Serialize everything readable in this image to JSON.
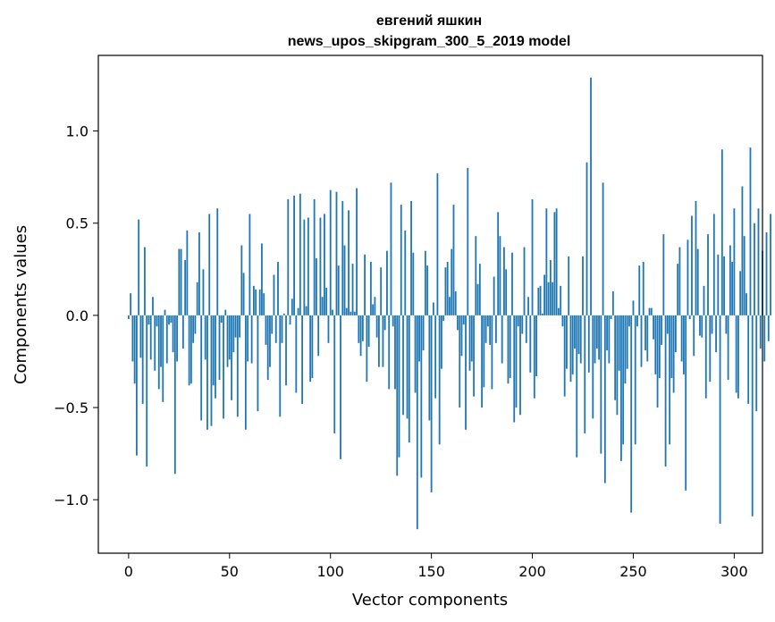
{
  "chart_data": {
    "type": "bar",
    "title_line1": "евгений яшкин",
    "title_line2": "news_upos_skipgram_300_5_2019 model",
    "xlabel": "Vector components",
    "ylabel": "Components values",
    "xlim": [
      -15,
      314
    ],
    "ylim": [
      -1.29,
      1.41
    ],
    "x_ticks": [
      {
        "value": 0,
        "label": "0"
      },
      {
        "value": 50,
        "label": "50"
      },
      {
        "value": 100,
        "label": "100"
      },
      {
        "value": 150,
        "label": "150"
      },
      {
        "value": 200,
        "label": "200"
      },
      {
        "value": 250,
        "label": "250"
      },
      {
        "value": 300,
        "label": "300"
      }
    ],
    "y_ticks": [
      {
        "value": -1.0,
        "label": "−1.0"
      },
      {
        "value": -0.5,
        "label": "−0.5"
      },
      {
        "value": 0.0,
        "label": "0.0"
      },
      {
        "value": 0.5,
        "label": "0.5"
      },
      {
        "value": 1.0,
        "label": "1.0"
      }
    ],
    "grid": false,
    "bar_color": "#1f77b4",
    "values": [
      -0.02,
      0.12,
      -0.25,
      -0.37,
      -0.76,
      0.52,
      -0.23,
      -0.48,
      0.37,
      -0.82,
      -0.05,
      -0.24,
      0.1,
      -0.3,
      -0.06,
      -0.4,
      -0.28,
      -0.47,
      0.03,
      -0.26,
      -0.05,
      -0.04,
      -0.2,
      -0.86,
      -0.25,
      0.36,
      0.36,
      -0.18,
      0.3,
      0.46,
      -0.38,
      -0.37,
      -0.15,
      -0.1,
      0.18,
      0.45,
      -0.57,
      0.25,
      -0.24,
      -0.62,
      0.55,
      -0.6,
      -0.38,
      -0.45,
      0.58,
      -0.35,
      -0.04,
      -0.56,
      0.03,
      -0.28,
      -0.24,
      -0.46,
      -0.2,
      -0.12,
      -0.55,
      -0.12,
      0.38,
      0.23,
      -0.62,
      -0.25,
      0.55,
      -0.26,
      0.16,
      0.14,
      -0.52,
      0.14,
      0.39,
      0.12,
      -0.16,
      -0.35,
      -0.28,
      -0.1,
      0.22,
      -0.15,
      0.29,
      -0.55,
      -0.15,
      0.01,
      -0.38,
      0.63,
      -0.05,
      0.09,
      0.65,
      -0.42,
      0.04,
      0.66,
      -0.48,
      0.52,
      0.05,
      0.53,
      -0.36,
      -0.34,
      0.63,
      0.31,
      -0.22,
      0.53,
      0.1,
      0.55,
      0.15,
      -0.15,
      0.68,
      0.03,
      -0.64,
      0.67,
      0.27,
      -0.78,
      0.62,
      0.38,
      0.04,
      0.57,
      0.02,
      0.28,
      0.02,
      0.69,
      -0.15,
      -0.22,
      -0.14,
      0.33,
      -0.36,
      -0.17,
      0.29,
      0.06,
      0.1,
      -0.12,
      -0.28,
      0.26,
      -0.28,
      -0.08,
      0.35,
      -0.4,
      0.72,
      -0.06,
      -0.4,
      -0.87,
      -0.77,
      0.6,
      -0.54,
      0.46,
      -0.56,
      -0.69,
      0.62,
      0.34,
      -0.42,
      -1.16,
      -0.25,
      -0.88,
      -0.19,
      0.35,
      0.27,
      -0.57,
      -0.96,
      0.07,
      -0.45,
      0.77,
      -0.7,
      -0.29,
      -0.03,
      0.26,
      0.29,
      0.1,
      0.36,
      0.6,
      0.13,
      -0.08,
      -0.5,
      -0.22,
      -0.05,
      -0.62,
      0.8,
      -0.3,
      -0.25,
      -0.44,
      0.43,
      0.17,
      0.28,
      -0.5,
      -0.39,
      -0.15,
      -0.06,
      -0.16,
      -0.4,
      0.21,
      -0.15,
      0.56,
      0.43,
      -0.26,
      0.37,
      0.25,
      -0.37,
      -0.34,
      0.34,
      -0.58,
      -0.5,
      -0.06,
      -0.54,
      -0.1,
      0.37,
      -0.15,
      0.1,
      -0.31,
      0.63,
      -0.45,
      -0.33,
      0.15,
      0.16,
      0.01,
      0.22,
      0.58,
      0.18,
      0.3,
      0.18,
      0.56,
      0.58,
      0.04,
      0.16,
      -0.06,
      -0.44,
      -0.29,
      0.32,
      -0.36,
      -0.32,
      -0.18,
      -0.77,
      -0.21,
      -0.26,
      0.32,
      -0.64,
      0.83,
      -0.31,
      1.29,
      -0.56,
      -0.26,
      -0.18,
      -0.24,
      -0.75,
      0.72,
      -0.91,
      -0.19,
      -0.26,
      -0.02,
      0.13,
      -0.46,
      -0.54,
      -0.3,
      -0.79,
      -0.7,
      -0.37,
      -0.29,
      -0.06,
      -1.07,
      0.08,
      -0.7,
      -0.06,
      0.27,
      -0.28,
      0.29,
      -0.19,
      -0.25,
      0.04,
      0.04,
      -0.13,
      -0.32,
      -0.5,
      -0.34,
      -0.16,
      0.44,
      -0.82,
      -0.1,
      -0.7,
      -0.34,
      -0.42,
      -0.2,
      0.28,
      0.37,
      -0.25,
      -0.32,
      -0.95,
      0.41,
      -0.02,
      0.54,
      -0.22,
      0.62,
      0.36,
      -0.11,
      -0.12,
      0.16,
      -0.45,
      0.44,
      -0.36,
      -0.1,
      0.55,
      -0.2,
      0.33,
      -1.13,
      0.9,
      0.32,
      -0.1,
      -0.35,
      0.38,
      0.29,
      0.58,
      -0.42,
      -0.45,
      0.24,
      0.7,
      0.43,
      0.12,
      -0.48,
      0.91,
      -1.09,
      0.5,
      -0.52,
      0.58,
      -0.18,
      0.35,
      -0.25,
      0.45,
      -0.14,
      0.55
    ]
  }
}
